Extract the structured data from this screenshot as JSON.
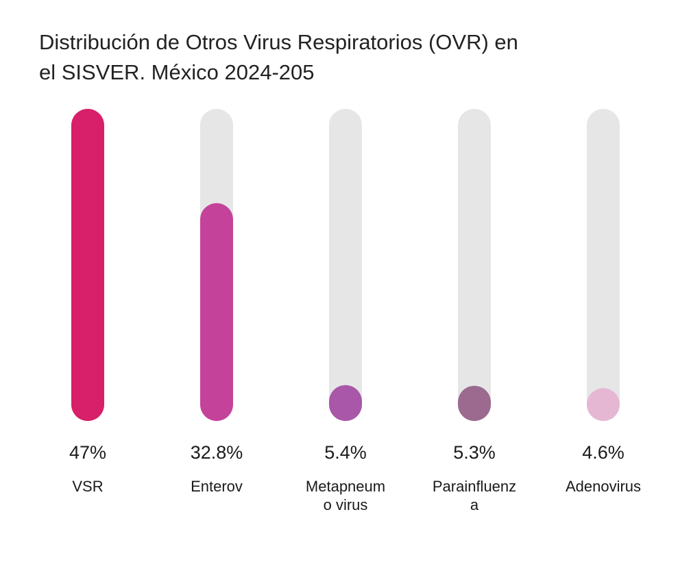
{
  "chart_data": {
    "type": "bar",
    "title": "Distribución de Otros Virus Respiratorios (OVR) en el SISVER. México 2024-205",
    "categories": [
      "VSR",
      "Enterov",
      "Metapneum\no virus",
      "Parainfluenz\na",
      "Adenovirus"
    ],
    "values": [
      47,
      32.8,
      5.4,
      5.3,
      4.6
    ],
    "value_labels": [
      "47%",
      "32.8%",
      "5.4%",
      "5.3%",
      "4.6%"
    ],
    "colors": [
      "#d81f6a",
      "#c5429b",
      "#a957a8",
      "#9c6a8e",
      "#e6b7d2"
    ],
    "track_color": "#e6e6e6",
    "ylim": [
      0,
      47
    ],
    "xlabel": "",
    "ylabel": "",
    "grid": false,
    "legend": "none"
  }
}
